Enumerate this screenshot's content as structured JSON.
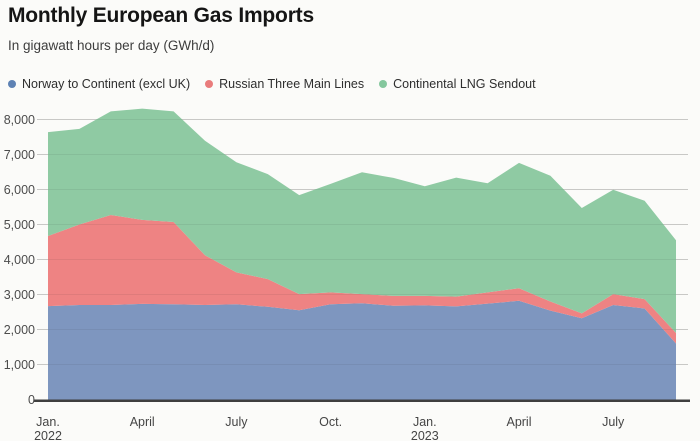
{
  "header": {
    "title": "Monthly European Gas Imports",
    "subtitle": "In gigawatt hours per day (GWh/d)"
  },
  "legend": [
    {
      "label": "Norway to Continent (excl UK)",
      "color": "#5e82b4"
    },
    {
      "label": "Russian Three Main Lines",
      "color": "#e97c7c"
    },
    {
      "label": "Continental LNG Sendout",
      "color": "#84c79d"
    }
  ],
  "chart_data": {
    "type": "area",
    "stacked": true,
    "title": "Monthly European Gas Imports",
    "subtitle": "In gigawatt hours per day (GWh/d)",
    "unit": "GWh/d",
    "grid": true,
    "legend_position": "top",
    "x": [
      "Jan. 2022",
      "Feb. 2022",
      "Mar. 2022",
      "Apr. 2022",
      "May 2022",
      "Jun. 2022",
      "Jul. 2022",
      "Aug. 2022",
      "Sep. 2022",
      "Oct. 2022",
      "Nov. 2022",
      "Dec. 2022",
      "Jan. 2023",
      "Feb. 2023",
      "Mar. 2023",
      "Apr. 2023",
      "May 2023",
      "Jun. 2023",
      "Jul. 2023",
      "Aug. 2023",
      "Sep. 2023"
    ],
    "series": [
      {
        "id": "norway",
        "name": "Norway to Continent (excl UK)",
        "color": "#7e96bf",
        "values": [
          2670,
          2700,
          2700,
          2730,
          2720,
          2700,
          2720,
          2650,
          2550,
          2720,
          2750,
          2680,
          2690,
          2660,
          2740,
          2820,
          2540,
          2320,
          2700,
          2600,
          1600
        ]
      },
      {
        "id": "russia",
        "name": "Russian Three Main Lines",
        "color": "#ee8383",
        "values": [
          2000,
          2300,
          2570,
          2400,
          2350,
          1420,
          910,
          790,
          460,
          340,
          260,
          280,
          270,
          280,
          320,
          360,
          260,
          140,
          310,
          270,
          300
        ]
      },
      {
        "id": "lng",
        "name": "Continental LNG Sendout",
        "color": "#8fcaa3",
        "values": [
          2970,
          2730,
          2960,
          3180,
          3160,
          3270,
          3150,
          3000,
          2830,
          3100,
          3480,
          3370,
          3130,
          3400,
          3120,
          3580,
          3590,
          3010,
          2980,
          2810,
          2650
        ]
      }
    ],
    "totals": [
      7640,
      7730,
      8230,
      8310,
      8230,
      7390,
      6780,
      6440,
      5840,
      6160,
      6490,
      6330,
      6090,
      6340,
      6180,
      6760,
      6390,
      5470,
      5990,
      5680,
      4550
    ],
    "y_axis": {
      "min": 0,
      "max": 8000,
      "ticks": [
        0,
        1000,
        2000,
        3000,
        4000,
        5000,
        6000,
        7000,
        8000
      ],
      "tick_labels": [
        "0",
        "1,000",
        "2,000",
        "3,000",
        "4,000",
        "5,000",
        "6,000",
        "7,000",
        "8,000"
      ]
    },
    "x_axis": {
      "labeled_months": [
        {
          "index": 0,
          "line1": "Jan.",
          "line2": "2022"
        },
        {
          "index": 3,
          "line1": "April",
          "line2": ""
        },
        {
          "index": 6,
          "line1": "July",
          "line2": ""
        },
        {
          "index": 9,
          "line1": "Oct.",
          "line2": ""
        },
        {
          "index": 12,
          "line1": "Jan.",
          "line2": "2023"
        },
        {
          "index": 15,
          "line1": "April",
          "line2": ""
        },
        {
          "index": 18,
          "line1": "July",
          "line2": ""
        }
      ]
    }
  }
}
